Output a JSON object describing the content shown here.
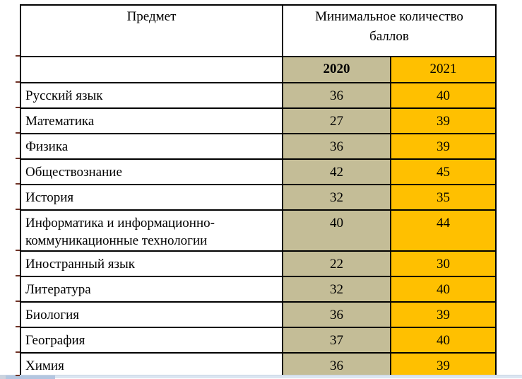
{
  "table": {
    "headers": {
      "subject": "Предмет",
      "min_score_line1": "Минимальное количество",
      "min_score_line2": "баллов",
      "year_2020": "2020",
      "year_2021": "2021"
    },
    "rows": [
      {
        "subject": "Русский язык",
        "score_2020": "36",
        "score_2021": "40"
      },
      {
        "subject": "Математика",
        "score_2020": "27",
        "score_2021": "39"
      },
      {
        "subject": "Физика",
        "score_2020": "36",
        "score_2021": "39"
      },
      {
        "subject": "Обществознание",
        "score_2020": "42",
        "score_2021": "45"
      },
      {
        "subject": "История",
        "score_2020": "32",
        "score_2021": "35"
      },
      {
        "subject": "Информатика и информационно-коммуникационные технологии",
        "score_2020": "40",
        "score_2021": "44"
      },
      {
        "subject": "Иностранный язык",
        "score_2020": "22",
        "score_2021": "30"
      },
      {
        "subject": "Литература",
        "score_2020": "32",
        "score_2021": "40"
      },
      {
        "subject": "Биология",
        "score_2020": "36",
        "score_2021": "39"
      },
      {
        "subject": "География",
        "score_2020": "37",
        "score_2021": "40"
      },
      {
        "subject": "Химия",
        "score_2020": "36",
        "score_2021": "39"
      }
    ]
  },
  "colors": {
    "col_2020_bg": "#c4bd97",
    "col_2021_bg": "#ffc000",
    "border": "#000000",
    "tick_mark": "#6e3226",
    "scrollbar_track": "#dce6f2",
    "scrollbar_thumb": "#b3c6e0"
  }
}
